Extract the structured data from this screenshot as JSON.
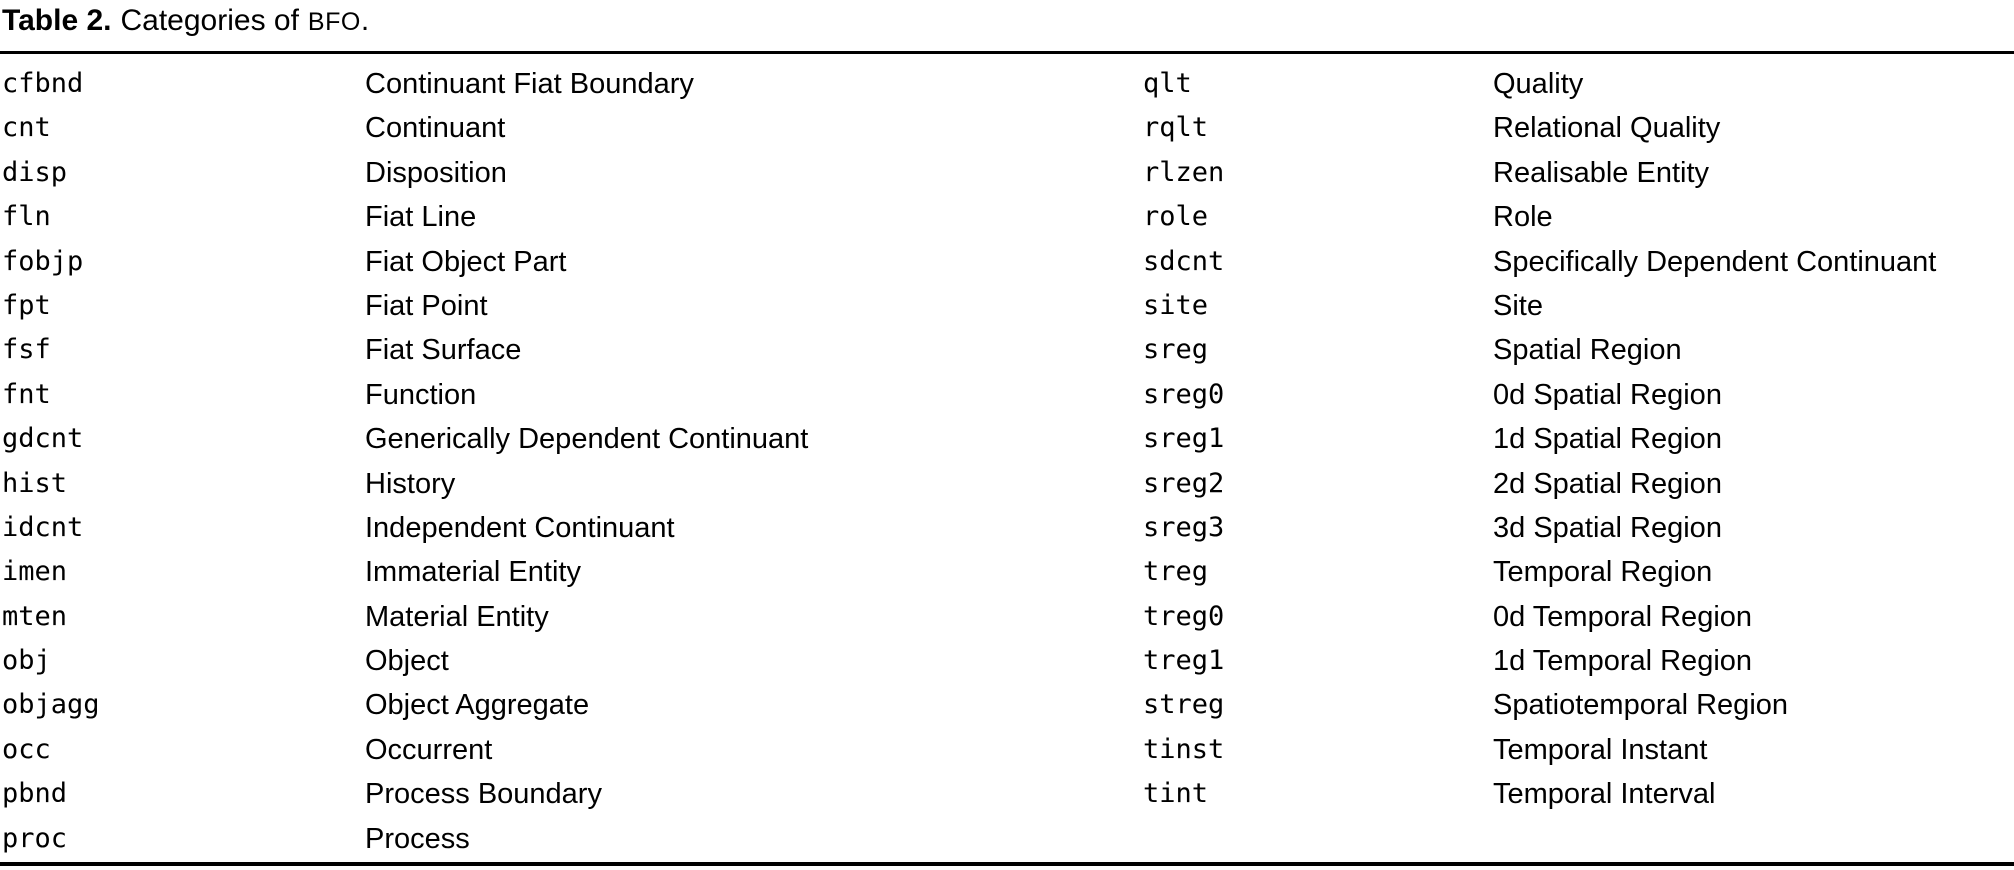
{
  "caption": {
    "label": "Table 2.",
    "text": "Categories of",
    "acronym": "BFO",
    "suffix": "."
  },
  "table": {
    "columns": [
      {
        "rows": [
          {
            "abbr": "cfbnd",
            "name": "Continuant Fiat Boundary"
          },
          {
            "abbr": "cnt",
            "name": "Continuant"
          },
          {
            "abbr": "disp",
            "name": "Disposition"
          },
          {
            "abbr": "fln",
            "name": "Fiat Line"
          },
          {
            "abbr": "fobjp",
            "name": "Fiat Object Part"
          },
          {
            "abbr": "fpt",
            "name": "Fiat Point"
          },
          {
            "abbr": "fsf",
            "name": "Fiat Surface"
          },
          {
            "abbr": "fnt",
            "name": "Function"
          },
          {
            "abbr": "gdcnt",
            "name": "Generically Dependent Continuant"
          },
          {
            "abbr": "hist",
            "name": "History"
          },
          {
            "abbr": "idcnt",
            "name": "Independent Continuant"
          },
          {
            "abbr": "imen",
            "name": "Immaterial Entity"
          },
          {
            "abbr": "mten",
            "name": "Material Entity"
          },
          {
            "abbr": "obj",
            "name": "Object"
          },
          {
            "abbr": "objagg",
            "name": "Object Aggregate"
          },
          {
            "abbr": "occ",
            "name": "Occurrent"
          },
          {
            "abbr": "pbnd",
            "name": "Process Boundary"
          },
          {
            "abbr": "proc",
            "name": "Process"
          }
        ]
      },
      {
        "rows": [
          {
            "abbr": "qlt",
            "name": "Quality"
          },
          {
            "abbr": "rqlt",
            "name": "Relational Quality"
          },
          {
            "abbr": "rlzen",
            "name": "Realisable Entity"
          },
          {
            "abbr": "role",
            "name": "Role"
          },
          {
            "abbr": "sdcnt",
            "name": "Specifically Dependent Continuant"
          },
          {
            "abbr": "site",
            "name": "Site"
          },
          {
            "abbr": "sreg",
            "name": "Spatial Region"
          },
          {
            "abbr": "sreg0",
            "name": "0d Spatial Region"
          },
          {
            "abbr": "sreg1",
            "name": "1d Spatial Region"
          },
          {
            "abbr": "sreg2",
            "name": "2d Spatial Region"
          },
          {
            "abbr": "sreg3",
            "name": "3d Spatial Region"
          },
          {
            "abbr": "treg",
            "name": "Temporal Region"
          },
          {
            "abbr": "treg0",
            "name": "0d Temporal Region"
          },
          {
            "abbr": "treg1",
            "name": "1d Temporal Region"
          },
          {
            "abbr": "streg",
            "name": "Spatiotemporal Region"
          },
          {
            "abbr": "tinst",
            "name": "Temporal Instant"
          },
          {
            "abbr": "tint",
            "name": "Temporal Interval"
          }
        ]
      }
    ]
  }
}
